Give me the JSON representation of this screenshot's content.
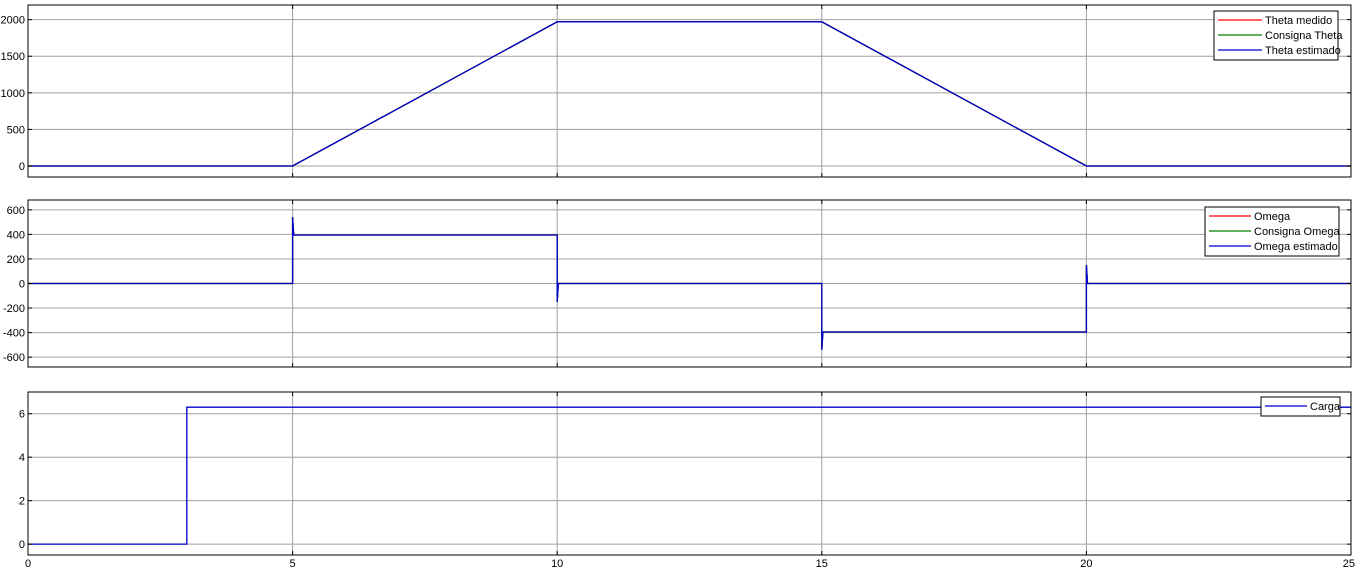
{
  "chart_data": [
    {
      "type": "line",
      "ylim": [
        -150,
        2200
      ],
      "xlim": [
        0,
        25
      ],
      "yticks": [
        0,
        500,
        1000,
        1500,
        2000
      ],
      "ytick_labels": [
        "0",
        "500",
        "1000",
        "1500",
        "2000"
      ],
      "grid": true,
      "legend_position": "top-right",
      "series": [
        {
          "name": "Theta medido",
          "color": "#ff0000",
          "x": [
            0,
            5,
            10,
            15,
            20,
            25
          ],
          "y": [
            0,
            0,
            1970,
            1970,
            0,
            0
          ]
        },
        {
          "name": "Consigna Theta",
          "color": "#008000",
          "x": [
            0,
            5,
            10,
            15,
            20,
            25
          ],
          "y": [
            0,
            0,
            1970,
            1970,
            0,
            0
          ]
        },
        {
          "name": "Theta estimado",
          "color": "#0000cc",
          "x": [
            0,
            5,
            10,
            15,
            20,
            25
          ],
          "y": [
            0,
            0,
            1970,
            1970,
            0,
            0
          ]
        }
      ]
    },
    {
      "type": "line",
      "ylim": [
        -680,
        680
      ],
      "xlim": [
        0,
        25
      ],
      "yticks": [
        -600,
        -400,
        -200,
        0,
        200,
        400,
        600
      ],
      "ytick_labels": [
        "-600",
        "-400",
        "-200",
        "0",
        "200",
        "400",
        "600"
      ],
      "grid": true,
      "legend_position": "top-right",
      "series": [
        {
          "name": "Omega",
          "color": "#ff0000",
          "x": [
            0,
            5,
            5,
            5.02,
            10,
            10,
            10.02,
            15,
            15,
            15.02,
            20,
            20,
            20.02,
            25
          ],
          "y": [
            0,
            0,
            540,
            395,
            395,
            -150,
            0,
            0,
            -540,
            -395,
            -395,
            150,
            0,
            0
          ]
        },
        {
          "name": "Consigna Omega",
          "color": "#008000",
          "x": [
            0,
            5,
            5,
            5.02,
            10,
            10,
            10.02,
            15,
            15,
            15.02,
            20,
            20,
            20.02,
            25
          ],
          "y": [
            0,
            0,
            540,
            395,
            395,
            -150,
            0,
            0,
            -540,
            -395,
            -395,
            150,
            0,
            0
          ]
        },
        {
          "name": "Omega estimado",
          "color": "#0000cc",
          "x": [
            0,
            5,
            5,
            5.02,
            10,
            10,
            10.02,
            15,
            15,
            15.02,
            20,
            20,
            20.02,
            25
          ],
          "y": [
            0,
            0,
            540,
            395,
            395,
            -150,
            0,
            0,
            -540,
            -395,
            -395,
            150,
            0,
            0
          ]
        }
      ]
    },
    {
      "type": "line",
      "ylim": [
        -0.5,
        7
      ],
      "xlim": [
        0,
        25
      ],
      "yticks": [
        0,
        2,
        4,
        6
      ],
      "ytick_labels": [
        "0",
        "2",
        "4",
        "6"
      ],
      "xticks": [
        0,
        5,
        10,
        15,
        20,
        25
      ],
      "xtick_labels": [
        "0",
        "5",
        "10",
        "15",
        "20",
        "25"
      ],
      "grid": true,
      "legend_position": "top-right",
      "series": [
        {
          "name": "Carga",
          "color": "#0000cc",
          "x": [
            0,
            3,
            3,
            25
          ],
          "y": [
            0,
            0,
            6.3,
            6.3
          ]
        }
      ]
    }
  ],
  "xticks": [
    0,
    5,
    10,
    15,
    20,
    25
  ],
  "xtick_labels": [
    "0",
    "5",
    "10",
    "15",
    "20",
    "25"
  ]
}
